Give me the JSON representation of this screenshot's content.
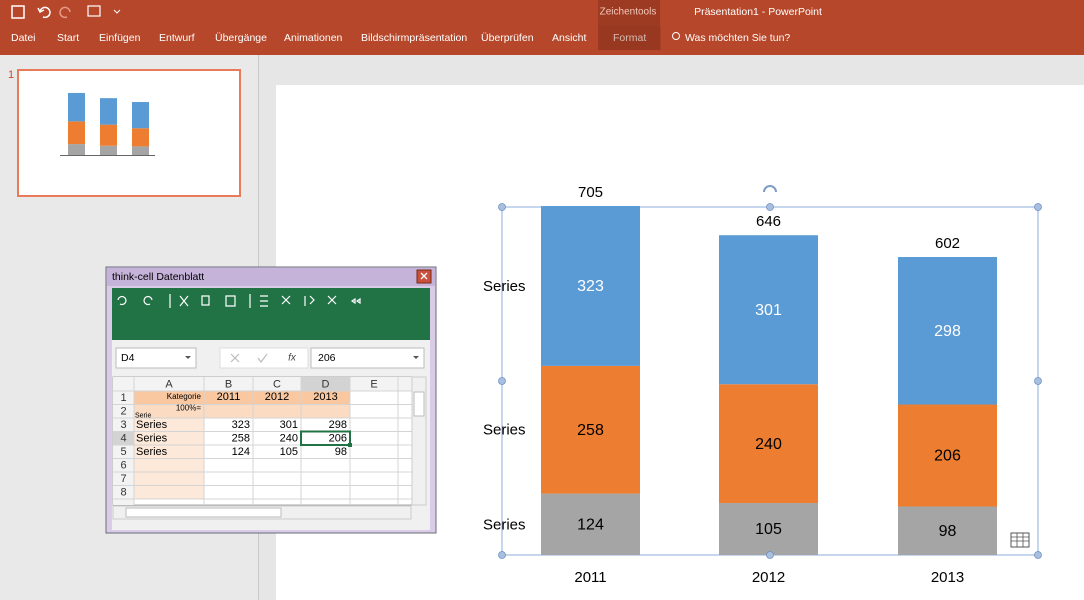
{
  "app": {
    "context_tab": "Zeichentools",
    "window_title": "Präsentation1 - PowerPoint",
    "tabs": [
      "Datei",
      "Start",
      "Einfügen",
      "Entwurf",
      "Übergänge",
      "Animationen",
      "Bildschirmpräsentation",
      "Überprüfen",
      "Ansicht",
      "Format"
    ],
    "active_tab_index": 9,
    "tell_me": "Was möchten Sie tun?"
  },
  "thumbnail": {
    "number": "1"
  },
  "datasheet": {
    "title": "think-cell Datenblatt",
    "name_box": "D4",
    "fx": "fx",
    "formula": "206",
    "columns": [
      "A",
      "B",
      "C",
      "D",
      "E"
    ],
    "row_numbers": [
      "1",
      "2",
      "3",
      "4",
      "5",
      "6",
      "7",
      "8"
    ],
    "header_row": [
      "Kategorie",
      "2011",
      "2012",
      "2013"
    ],
    "percent_row": "100%=",
    "serie_label": "Serie",
    "rows": [
      [
        "Series",
        323,
        301,
        298
      ],
      [
        "Series",
        258,
        240,
        206
      ],
      [
        "Series",
        124,
        105,
        98
      ]
    ]
  },
  "chart_data": {
    "type": "bar",
    "stacked": true,
    "categories": [
      "2011",
      "2012",
      "2013"
    ],
    "series": [
      {
        "name": "Series",
        "color": "#a5a5a5",
        "label_color": "#000000",
        "values": [
          124,
          105,
          98
        ]
      },
      {
        "name": "Series",
        "color": "#ed7d31",
        "label_color": "#000000",
        "values": [
          258,
          240,
          206
        ]
      },
      {
        "name": "Series",
        "color": "#5b9bd5",
        "label_color": "#ffffff",
        "values": [
          323,
          301,
          298
        ]
      }
    ],
    "totals": [
      705,
      646,
      602
    ]
  }
}
